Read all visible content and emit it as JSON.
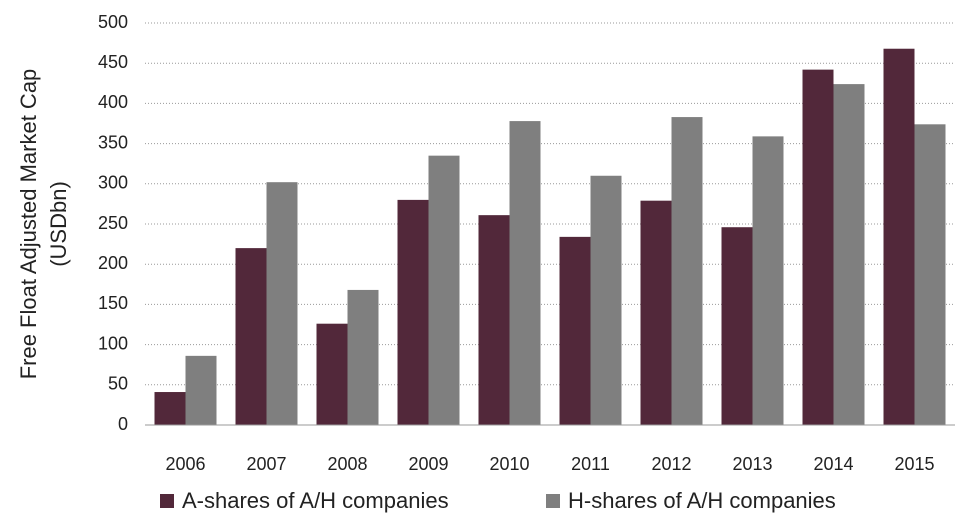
{
  "chart_data": {
    "type": "bar",
    "ylabel": [
      "Free Float Adjusted Market Cap",
      "(USDbn)"
    ],
    "categories": [
      "2006",
      "2007",
      "2008",
      "2009",
      "2010",
      "2011",
      "2012",
      "2013",
      "2014",
      "2015"
    ],
    "series": [
      {
        "name": "A-shares of A/H companies",
        "color": "#52283a",
        "values": [
          41,
          220,
          126,
          280,
          261,
          234,
          279,
          246,
          442,
          468
        ]
      },
      {
        "name": "H-shares of A/H companies",
        "color": "#7f7f7f",
        "values": [
          86,
          302,
          168,
          335,
          378,
          310,
          383,
          359,
          424,
          374
        ]
      }
    ],
    "ylim": [
      0,
      500
    ],
    "yticks": [
      0,
      50,
      100,
      150,
      200,
      250,
      300,
      350,
      400,
      450,
      500
    ],
    "grid": true,
    "legend": "bottom"
  }
}
